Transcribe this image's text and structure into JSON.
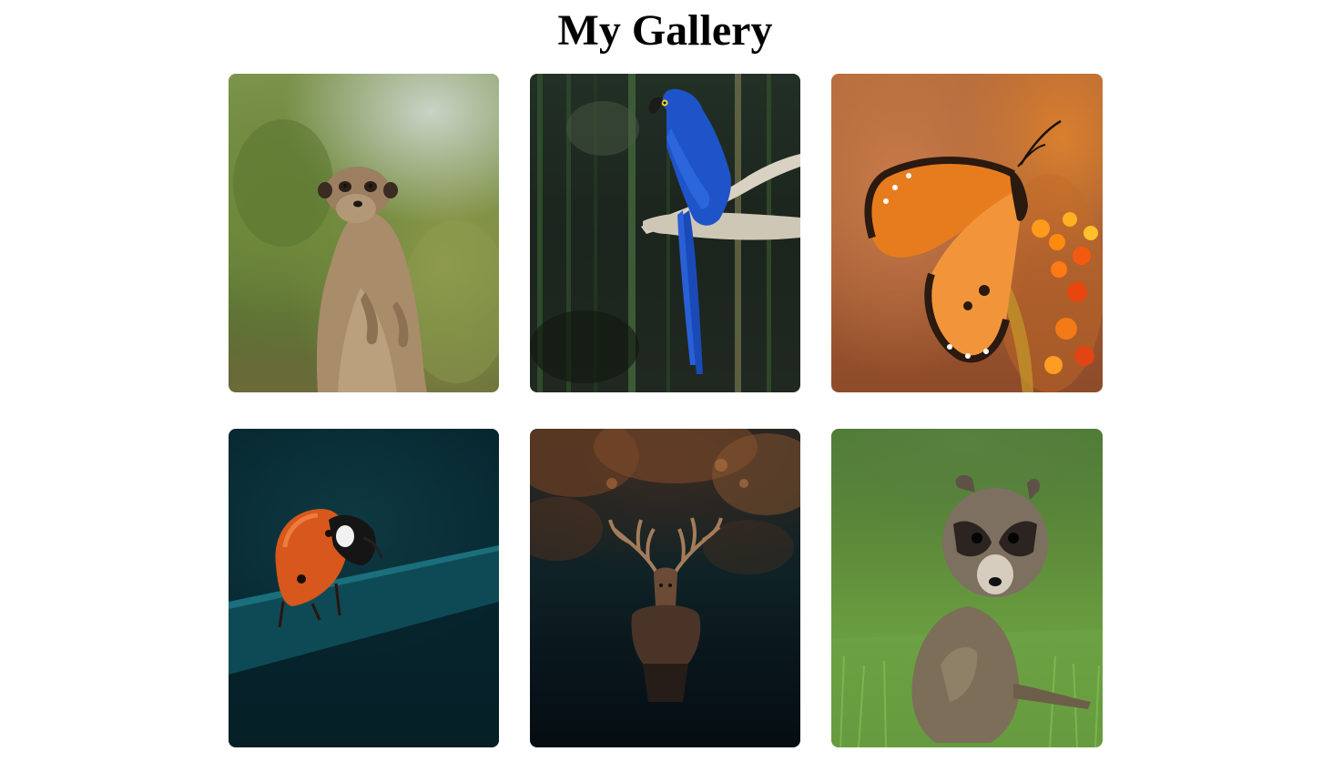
{
  "gallery": {
    "title": "My Gallery",
    "images": [
      {
        "subject": "meerkat"
      },
      {
        "subject": "blue-macaw"
      },
      {
        "subject": "monarch-butterfly"
      },
      {
        "subject": "ladybug"
      },
      {
        "subject": "red-deer"
      },
      {
        "subject": "raccoon"
      }
    ]
  },
  "colors": {
    "page_background": "#ffffff",
    "title_text": "#000000"
  }
}
